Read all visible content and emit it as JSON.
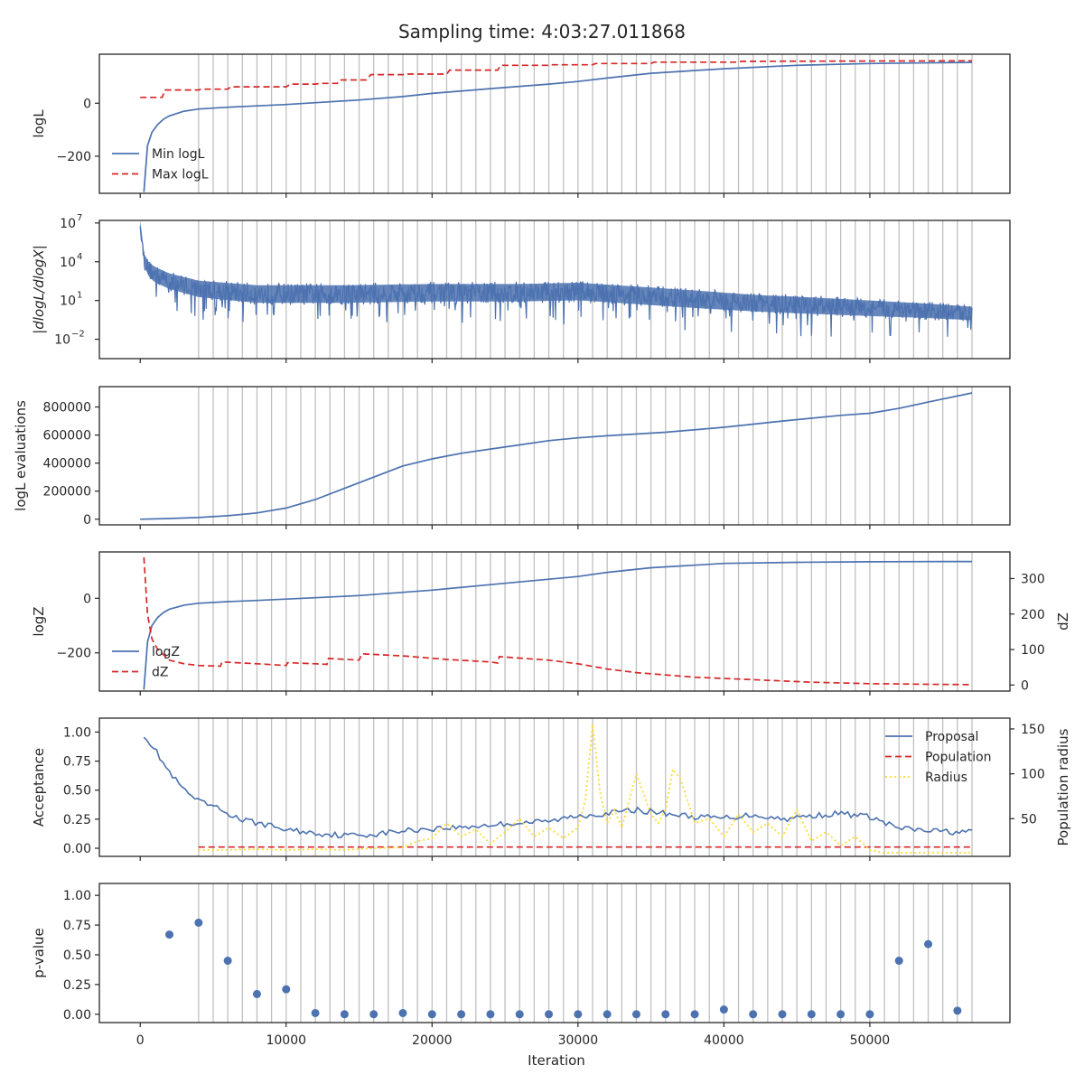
{
  "figure": {
    "title": "Sampling time: 4:03:27.011868"
  },
  "colors": {
    "blue": "#4c72b0",
    "red": "#d62728",
    "yellow": "#ffd92f",
    "grid_vline": "#c0c0c0",
    "marker": "#4c72b0"
  },
  "chart_data": [
    {
      "id": "logL",
      "type": "line",
      "ylabel": "logL",
      "xlim": [
        -2800,
        59600
      ],
      "ylim": [
        -340,
        185
      ],
      "yticks": [
        -200,
        0
      ],
      "ytick_labels": [
        "−200",
        "0"
      ],
      "legend": {
        "placement": "lower-left",
        "entries": [
          "Min logL",
          "Max logL"
        ]
      },
      "series": [
        {
          "name": "Min logL",
          "style": "solid",
          "color": "blue",
          "x": [
            250,
            500,
            800,
            1200,
            1600,
            2000,
            3000,
            4000,
            6000,
            8000,
            10000,
            12000,
            15000,
            18000,
            20000,
            24000,
            28000,
            30000,
            32000,
            35000,
            40000,
            45000,
            50000,
            55000,
            57000
          ],
          "y": [
            -335,
            -160,
            -110,
            -80,
            -60,
            -48,
            -30,
            -22,
            -15,
            -10,
            -5,
            2,
            12,
            25,
            37,
            55,
            72,
            82,
            95,
            113,
            130,
            143,
            150,
            153,
            154
          ]
        },
        {
          "name": "Max logL",
          "style": "dashed",
          "color": "red",
          "x": [
            0,
            1500,
            1700,
            4000,
            4200,
            6000,
            6200,
            10000,
            10300,
            12000,
            12300,
            13500,
            13700,
            15500,
            15800,
            18000,
            18200,
            21000,
            21200,
            24500,
            24700,
            28000,
            28200,
            31000,
            31200,
            35000,
            35200,
            41000,
            41200,
            57000
          ],
          "y": [
            22,
            22,
            50,
            50,
            53,
            53,
            62,
            62,
            72,
            72,
            75,
            75,
            88,
            88,
            108,
            108,
            110,
            110,
            125,
            125,
            143,
            143,
            145,
            145,
            150,
            150,
            155,
            155,
            158,
            160
          ]
        }
      ],
      "vlines": [
        4000,
        5000,
        6000,
        7000,
        8000,
        9000,
        10000,
        11000,
        12000,
        13000,
        14000,
        15000,
        16000,
        17000,
        18000,
        19000,
        20000,
        21000,
        22000,
        23000,
        24000,
        25000,
        26000,
        27000,
        28000,
        29000,
        30000,
        31000,
        32000,
        33000,
        34000,
        35000,
        36000,
        37000,
        38000,
        39000,
        40000,
        41000,
        42000,
        43000,
        44000,
        45000,
        46000,
        47000,
        48000,
        49000,
        50000,
        51000,
        52000,
        53000,
        54000,
        55000,
        56000,
        57000
      ]
    },
    {
      "id": "dlogl",
      "type": "line",
      "ylabel": "|dlogL/dlogX|",
      "yscale": "log",
      "xlim": [
        -2800,
        59600
      ],
      "ylim_log10": [
        -3.5,
        7.2
      ],
      "yticks_log10": [
        7,
        4,
        1,
        -2
      ],
      "ytick_labels": [
        [
          "10",
          "7"
        ],
        [
          "10",
          "4"
        ],
        [
          "10",
          "1"
        ],
        [
          "10",
          "−2"
        ]
      ],
      "series": [
        {
          "name": "",
          "style": "noisy",
          "color": "blue",
          "x": [
            0,
            120,
            300,
            600,
            1000,
            2000,
            4000,
            8000,
            14000,
            20000,
            26000,
            30000,
            34000,
            38000,
            42000,
            46000,
            50000,
            54000,
            57000
          ],
          "y_log10_center": [
            7,
            5.5,
            4.0,
            3.4,
            3.0,
            2.5,
            1.9,
            1.5,
            1.5,
            1.6,
            1.6,
            1.7,
            1.4,
            1.1,
            0.8,
            0.6,
            0.4,
            0.2,
            0.0
          ],
          "y_log10_spread": [
            0.6,
            0.9,
            1.2,
            1.4,
            1.5,
            1.5,
            1.6,
            1.7,
            1.7,
            1.7,
            1.7,
            1.7,
            1.7,
            1.7,
            1.6,
            1.6,
            1.5,
            1.4,
            1.3
          ]
        }
      ]
    },
    {
      "id": "evaluations",
      "type": "line",
      "ylabel": "logL evaluations",
      "xlim": [
        -2800,
        59600
      ],
      "ylim": [
        -40000,
        945000
      ],
      "yticks": [
        0,
        200000,
        400000,
        600000,
        800000
      ],
      "ytick_labels": [
        "0",
        "200000",
        "400000",
        "600000",
        "800000"
      ],
      "series": [
        {
          "name": "",
          "style": "solid",
          "color": "blue",
          "x": [
            0,
            2000,
            4000,
            6000,
            8000,
            10000,
            12000,
            14000,
            16000,
            18000,
            20000,
            22000,
            24000,
            26000,
            28000,
            30000,
            32000,
            36000,
            40000,
            44000,
            48000,
            50000,
            52000,
            54000,
            57000
          ],
          "y": [
            0,
            5000,
            12000,
            25000,
            45000,
            80000,
            140000,
            220000,
            300000,
            380000,
            430000,
            470000,
            500000,
            530000,
            560000,
            580000,
            595000,
            620000,
            655000,
            700000,
            740000,
            755000,
            790000,
            835000,
            900000
          ]
        }
      ]
    },
    {
      "id": "logz",
      "type": "line",
      "ylabel": "logZ",
      "y2label": "dZ",
      "xlim": [
        -2800,
        59600
      ],
      "ylim": [
        -340,
        170
      ],
      "yticks": [
        -200,
        0
      ],
      "ytick_labels": [
        "−200",
        "0"
      ],
      "y2lim": [
        -17,
        375
      ],
      "y2ticks": [
        0,
        100,
        200,
        300
      ],
      "y2tick_labels": [
        "0",
        "100",
        "200",
        "300"
      ],
      "legend": {
        "placement": "lower-left",
        "entries": [
          "logZ",
          "dZ"
        ]
      },
      "series": [
        {
          "name": "logZ",
          "style": "solid",
          "color": "blue",
          "axis": "left",
          "x": [
            250,
            500,
            800,
            1200,
            1600,
            2000,
            3000,
            4000,
            6000,
            8000,
            10000,
            12000,
            15000,
            18000,
            20000,
            24000,
            28000,
            30000,
            32000,
            35000,
            40000,
            45000,
            50000,
            55000,
            57000
          ],
          "y": [
            -335,
            -160,
            -100,
            -70,
            -52,
            -40,
            -25,
            -18,
            -12,
            -8,
            -3,
            2,
            10,
            22,
            30,
            50,
            70,
            80,
            95,
            112,
            128,
            132,
            134,
            135,
            135
          ]
        },
        {
          "name": "dZ",
          "style": "dashed",
          "color": "red",
          "axis": "right",
          "x": [
            250,
            500,
            800,
            1200,
            2000,
            3000,
            4000,
            5500,
            5600,
            8000,
            10000,
            10100,
            12000,
            12800,
            12900,
            15000,
            15200,
            18000,
            21000,
            24000,
            24500,
            24600,
            28000,
            30000,
            32000,
            34000,
            38000,
            42000,
            46000,
            50000,
            54000,
            57000
          ],
          "y": [
            360,
            200,
            130,
            100,
            70,
            60,
            55,
            53,
            65,
            60,
            55,
            63,
            60,
            58,
            75,
            70,
            88,
            82,
            72,
            65,
            62,
            80,
            70,
            60,
            45,
            35,
            22,
            15,
            8,
            4,
            2,
            1
          ]
        }
      ],
      "vlines": []
    },
    {
      "id": "acceptance",
      "type": "line",
      "ylabel": "Acceptance",
      "y2label": "Population radius",
      "xlim": [
        -2800,
        59600
      ],
      "ylim": [
        -0.07,
        1.12
      ],
      "yticks": [
        0.0,
        0.25,
        0.5,
        0.75,
        1.0
      ],
      "ytick_labels": [
        "0.00",
        "0.25",
        "0.50",
        "0.75",
        "1.00"
      ],
      "y2lim": [
        8,
        162
      ],
      "y2ticks": [
        50,
        100,
        150
      ],
      "y2tick_labels": [
        "50",
        "100",
        "150"
      ],
      "legend": {
        "placement": "upper-right",
        "entries": [
          "Proposal",
          "Population",
          "Radius"
        ]
      },
      "series": [
        {
          "name": "Proposal",
          "style": "noisy",
          "color": "blue",
          "axis": "left",
          "x": [
            250,
            1000,
            2000,
            3000,
            4000,
            5000,
            6000,
            7000,
            8000,
            10000,
            12000,
            14000,
            16000,
            18000,
            20000,
            22000,
            24000,
            26000,
            28000,
            30000,
            32000,
            34000,
            36000,
            38000,
            40000,
            42000,
            44000,
            46000,
            48000,
            50000,
            52000,
            54000,
            56000,
            57000
          ],
          "y": [
            0.98,
            0.85,
            0.65,
            0.5,
            0.4,
            0.36,
            0.3,
            0.24,
            0.22,
            0.16,
            0.13,
            0.11,
            0.12,
            0.15,
            0.17,
            0.18,
            0.2,
            0.22,
            0.23,
            0.28,
            0.3,
            0.33,
            0.3,
            0.27,
            0.26,
            0.29,
            0.25,
            0.28,
            0.3,
            0.27,
            0.17,
            0.15,
            0.14,
            0.14
          ]
        },
        {
          "name": "Population",
          "style": "dashed",
          "color": "red",
          "axis": "left",
          "x": [
            4000,
            57000
          ],
          "y": [
            0.01,
            0.01
          ]
        },
        {
          "name": "Radius",
          "style": "dotted",
          "color": "yellow",
          "axis": "right",
          "x": [
            4000,
            6000,
            8000,
            10000,
            12000,
            14000,
            16000,
            18000,
            19000,
            20000,
            21000,
            22000,
            23000,
            24000,
            25000,
            26000,
            27000,
            28000,
            29000,
            30000,
            30500,
            31000,
            31500,
            32000,
            32500,
            33000,
            34000,
            35000,
            35500,
            36000,
            36500,
            37000,
            37500,
            38000,
            39000,
            40000,
            41000,
            42000,
            43000,
            44000,
            45000,
            46000,
            47000,
            48000,
            49000,
            50000,
            51000,
            52000,
            54000,
            57000
          ],
          "y": [
            15,
            15,
            16,
            15,
            16,
            15,
            17,
            18,
            25,
            28,
            45,
            30,
            38,
            22,
            35,
            50,
            30,
            40,
            28,
            40,
            70,
            155,
            80,
            45,
            60,
            40,
            100,
            55,
            45,
            60,
            105,
            95,
            70,
            45,
            50,
            30,
            55,
            35,
            45,
            30,
            60,
            25,
            35,
            20,
            30,
            15,
            12,
            12,
            12,
            12
          ]
        }
      ],
      "vlines": []
    },
    {
      "id": "pvalue",
      "type": "scatter",
      "ylabel": "p-value",
      "xlabel": "Iteration",
      "xlim": [
        -2800,
        59600
      ],
      "ylim": [
        -0.07,
        1.1
      ],
      "yticks": [
        0.0,
        0.25,
        0.5,
        0.75,
        1.0
      ],
      "ytick_labels": [
        "0.00",
        "0.25",
        "0.50",
        "0.75",
        "1.00"
      ],
      "xticks": [
        0,
        10000,
        20000,
        30000,
        40000,
        50000
      ],
      "xtick_labels": [
        "0",
        "10000",
        "20000",
        "30000",
        "40000",
        "50000"
      ],
      "series": [
        {
          "name": "",
          "style": "markers",
          "color": "marker",
          "x": [
            2000,
            4000,
            6000,
            8000,
            10000,
            12000,
            14000,
            16000,
            18000,
            20000,
            22000,
            24000,
            26000,
            28000,
            30000,
            32000,
            34000,
            36000,
            38000,
            40000,
            42000,
            44000,
            46000,
            48000,
            50000,
            52000,
            54000,
            56000
          ],
          "y": [
            0.67,
            0.77,
            0.45,
            0.17,
            0.21,
            0.01,
            0.0,
            0.0,
            0.01,
            0.0,
            0.0,
            0.0,
            0.0,
            0.0,
            0.0,
            0.0,
            0.0,
            0.0,
            0.0,
            0.04,
            0.0,
            0.0,
            0.0,
            0.0,
            0.0,
            0.45,
            0.59,
            0.03
          ]
        }
      ],
      "vlines": []
    }
  ]
}
